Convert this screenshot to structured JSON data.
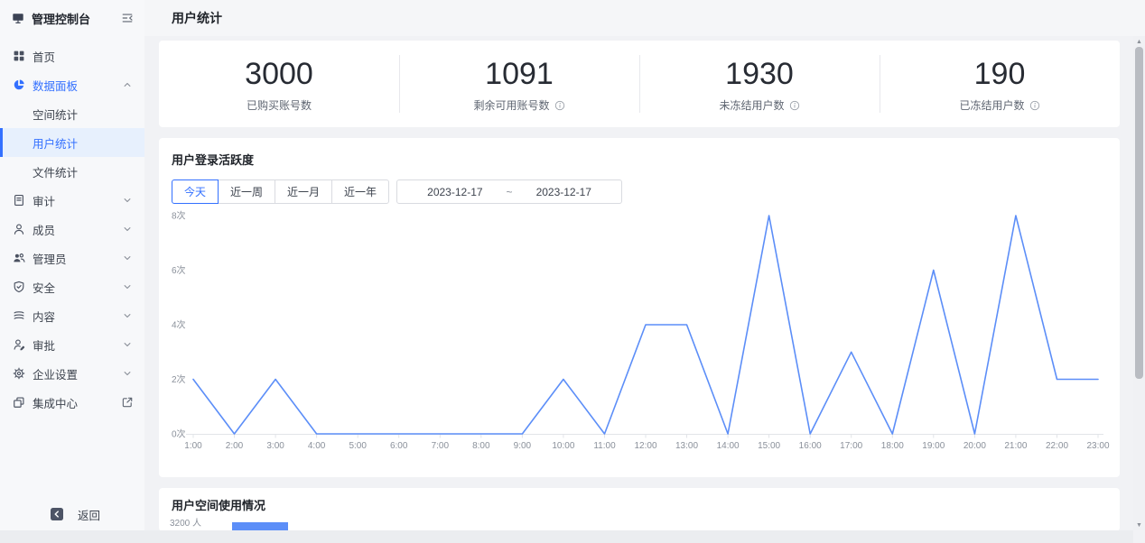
{
  "page": {
    "title": "用户统计"
  },
  "colors": {
    "accent": "#3370ff",
    "chart_line": "#5c8ef8",
    "active_item_bg": "#e7f0fd"
  },
  "sidebar": {
    "title": "管理控制台",
    "logo_icon": "monitor-icon",
    "collapse_icon": "collapse-icon",
    "items": [
      {
        "id": "home",
        "icon": "grid-icon",
        "label": "首页"
      },
      {
        "id": "data-panel",
        "icon": "pie-icon",
        "label": "数据面板",
        "expanded": true,
        "highlighted": true,
        "children": [
          {
            "id": "space-stats",
            "label": "空间统计"
          },
          {
            "id": "user-stats",
            "label": "用户统计",
            "active": true
          },
          {
            "id": "file-stats",
            "label": "文件统计"
          }
        ]
      },
      {
        "id": "audit",
        "icon": "book-icon",
        "label": "审计",
        "chevron": "down"
      },
      {
        "id": "members",
        "icon": "user-icon",
        "label": "成员",
        "chevron": "down"
      },
      {
        "id": "admins",
        "icon": "users-icon",
        "label": "管理员",
        "chevron": "down"
      },
      {
        "id": "security",
        "icon": "shield-icon",
        "label": "安全",
        "chevron": "down"
      },
      {
        "id": "content",
        "icon": "layers-icon",
        "label": "内容",
        "chevron": "down"
      },
      {
        "id": "approval",
        "icon": "approval-icon",
        "label": "审批",
        "chevron": "down"
      },
      {
        "id": "enterprise-settings",
        "icon": "gear-icon",
        "label": "企业设置",
        "chevron": "down"
      },
      {
        "id": "integration-center",
        "icon": "integration-icon",
        "label": "集成中心",
        "external": true
      }
    ],
    "back_label": "返回",
    "back_icon": "back-icon"
  },
  "stats": {
    "items": [
      {
        "id": "purchased-accounts",
        "value": "3000",
        "label": "已购买账号数",
        "info": false
      },
      {
        "id": "available-accounts",
        "value": "1091",
        "label": "剩余可用账号数",
        "info": true
      },
      {
        "id": "unfrozen-users",
        "value": "1930",
        "label": "未冻结用户数",
        "info": true
      },
      {
        "id": "frozen-users",
        "value": "190",
        "label": "已冻结用户数",
        "info": true
      }
    ]
  },
  "chart_data": [
    {
      "type": "line",
      "title": "用户登录活跃度",
      "x": [
        "1:00",
        "2:00",
        "3:00",
        "4:00",
        "5:00",
        "6:00",
        "7:00",
        "8:00",
        "9:00",
        "10:00",
        "11:00",
        "12:00",
        "13:00",
        "14:00",
        "15:00",
        "16:00",
        "17:00",
        "18:00",
        "19:00",
        "20:00",
        "21:00",
        "22:00",
        "23:00"
      ],
      "values": [
        2,
        0,
        2,
        0,
        0,
        0,
        0,
        0,
        0,
        2,
        0,
        4,
        4,
        0,
        8,
        0,
        3,
        0,
        6,
        0,
        8,
        2,
        2
      ],
      "yticks": [
        "0次",
        "2次",
        "4次",
        "6次",
        "8次"
      ],
      "ytick_values": [
        0,
        2,
        4,
        6,
        8
      ],
      "ylim": [
        0,
        8
      ],
      "grid": false,
      "legend": "none",
      "line_color": "#5c8ef8",
      "filters": {
        "presets": [
          "今天",
          "近一周",
          "近一月",
          "近一年"
        ],
        "active": "今天",
        "date_start": "2023-12-17",
        "separator": "~",
        "date_end": "2023-12-17"
      }
    },
    {
      "type": "bar",
      "title": "用户空间使用情况",
      "y_axis_label": "3200 人",
      "bar_color": "#5c8ef8",
      "visible": "partially clipped at viewport bottom"
    }
  ]
}
